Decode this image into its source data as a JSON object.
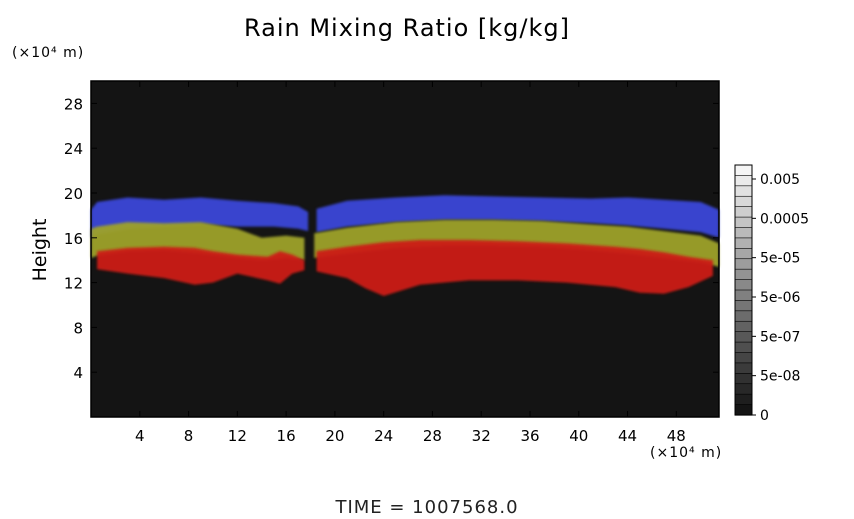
{
  "chart_data": {
    "type": "heatmap",
    "title": "Rain Mixing Ratio [kg/kg]",
    "ylabel": "Height",
    "y_unit": "(×10⁴ m)",
    "x_unit": "(×10⁴ m)",
    "footer": "TIME = 1007568.0",
    "xlim": [
      0,
      51.5
    ],
    "ylim": [
      0,
      30
    ],
    "x_ticks": [
      4,
      8,
      12,
      16,
      20,
      24,
      28,
      32,
      36,
      40,
      44,
      48
    ],
    "y_ticks": [
      4,
      8,
      12,
      16,
      20,
      24,
      28
    ],
    "colorbar": {
      "tick_labels": [
        "0.005",
        "0.0005",
        "5e-05",
        "5e-06",
        "5e-07",
        "5e-08",
        "0"
      ]
    },
    "background_color": "#141414",
    "layers": [
      {
        "color": "#3a46d8",
        "segments": [
          {
            "x": [
              0,
              0.5,
              3,
              6,
              9,
              12,
              15,
              17,
              17.8
            ],
            "top": [
              18.5,
              19.2,
              19.6,
              19.4,
              19.6,
              19.3,
              19.1,
              18.8,
              18.3
            ],
            "bottom": [
              16.0,
              16.3,
              16.8,
              17.0,
              17.2,
              17.0,
              17.0,
              16.8,
              16.6
            ]
          },
          {
            "x": [
              18.5,
              21,
              25,
              29,
              33,
              37,
              41,
              44,
              47,
              50,
              51.5
            ],
            "top": [
              18.6,
              19.3,
              19.6,
              19.8,
              19.7,
              19.6,
              19.5,
              19.6,
              19.4,
              19.2,
              18.5
            ],
            "bottom": [
              16.5,
              17.0,
              17.4,
              17.6,
              17.6,
              17.5,
              17.3,
              17.1,
              16.8,
              16.5,
              16.0
            ]
          }
        ]
      },
      {
        "color": "#9ea22a",
        "segments": [
          {
            "x": [
              0,
              0.5,
              3,
              6,
              9,
              12,
              14,
              16,
              17.5
            ],
            "top": [
              16.8,
              17.0,
              17.4,
              17.3,
              17.4,
              16.8,
              16.0,
              16.2,
              16.0
            ],
            "bottom": [
              14.2,
              14.4,
              14.8,
              14.9,
              14.6,
              14.2,
              14.0,
              14.2,
              14.0
            ]
          },
          {
            "x": [
              18.3,
              21,
              25,
              29,
              33,
              37,
              41,
              44,
              47,
              50,
              51.5
            ],
            "top": [
              16.4,
              16.9,
              17.4,
              17.6,
              17.6,
              17.5,
              17.2,
              17.0,
              16.6,
              16.2,
              15.5
            ],
            "bottom": [
              14.2,
              14.6,
              15.1,
              15.3,
              15.3,
              15.2,
              14.9,
              14.6,
              14.2,
              13.8,
              13.4
            ]
          }
        ]
      },
      {
        "color": "#cc1a14",
        "segments": [
          {
            "x": [
              0.5,
              3,
              6,
              8.5,
              10,
              12,
              14.5,
              15.5,
              16.5,
              17.5
            ],
            "top": [
              14.8,
              15.1,
              15.2,
              15.1,
              14.8,
              14.5,
              14.3,
              14.8,
              14.5,
              14.0
            ],
            "bottom": [
              13.2,
              12.8,
              12.4,
              11.8,
              12.0,
              12.8,
              12.2,
              11.9,
              12.8,
              13.1
            ]
          },
          {
            "x": [
              18.5,
              21,
              22.5,
              24,
              27,
              31,
              35,
              39,
              43,
              45,
              47,
              49,
              51
            ],
            "top": [
              14.8,
              15.2,
              15.4,
              15.6,
              15.8,
              15.8,
              15.7,
              15.5,
              15.2,
              15.0,
              14.7,
              14.3,
              14.0
            ],
            "bottom": [
              13.0,
              12.4,
              11.5,
              10.8,
              11.8,
              12.2,
              12.2,
              12.0,
              11.6,
              11.1,
              11.0,
              11.6,
              12.6
            ]
          }
        ]
      }
    ]
  }
}
